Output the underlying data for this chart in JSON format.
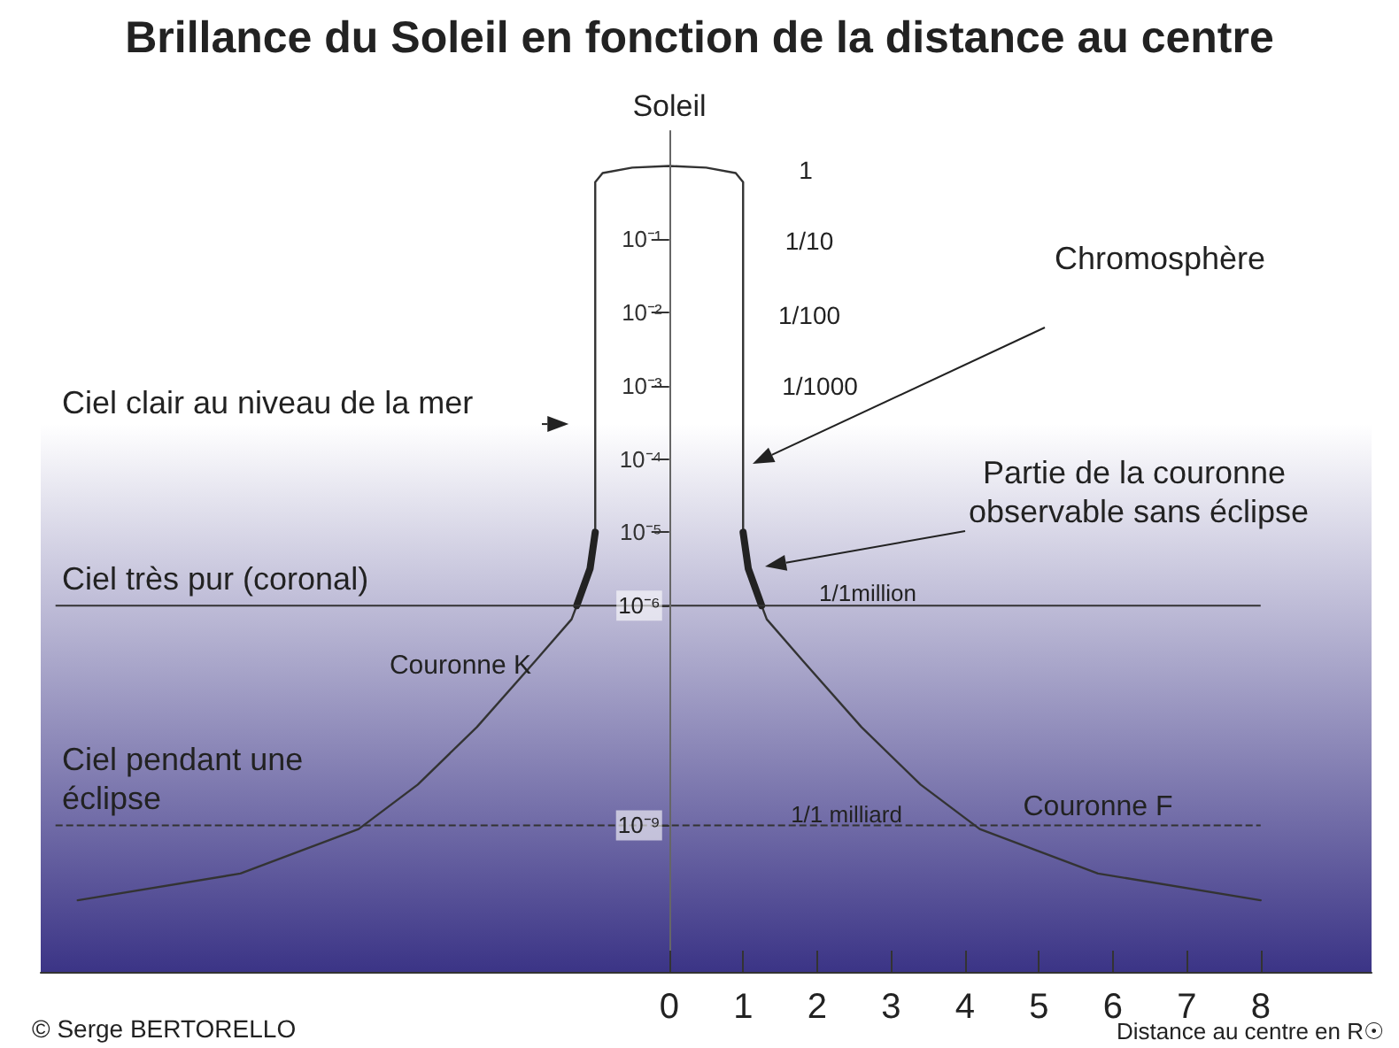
{
  "chart_data": {
    "type": "line",
    "title": "Brillance du Soleil en fonction de la distance au centre",
    "xlabel": "Distance au centre en R☉",
    "log": "y",
    "xlim": [
      -8.5,
      9.5
    ],
    "xticks": [
      0,
      1,
      2,
      3,
      4,
      5,
      6,
      7,
      8
    ],
    "ylim": [
      1e-11,
      3
    ],
    "yticks": [
      {
        "value": 0.1,
        "label": "10⁻¹"
      },
      {
        "value": 0.01,
        "label": "10⁻²"
      },
      {
        "value": 0.001,
        "label": "10⁻³"
      },
      {
        "value": 0.0001,
        "label": "10⁻⁴"
      },
      {
        "value": 1e-05,
        "label": "10⁻⁵"
      },
      {
        "value": 1e-06,
        "label": "10⁻⁶"
      },
      {
        "value": 1e-09,
        "label": "10⁻⁹"
      }
    ],
    "grid": false,
    "marker": "none",
    "line_style": "solid",
    "series": [
      {
        "color": "#333333",
        "x": [
          -8,
          -5.8,
          -4.2,
          -3.4,
          -2.6,
          -1.8,
          -1.32,
          -1.25,
          -1.07,
          -1,
          -1,
          -0.9,
          -0.5,
          0,
          0.5,
          0.9,
          1,
          1,
          1.07,
          1.25,
          1.32,
          1.8,
          2.6,
          3.4,
          4.2,
          5.8,
          8
        ],
        "values": [
          9.5e-11,
          2.2e-10,
          8.9e-10,
          3.6e-09,
          2.2e-08,
          1.8e-07,
          6.5e-07,
          1e-06,
          3.2e-06,
          1e-05,
          0.6,
          0.8,
          0.95,
          1,
          0.95,
          0.8,
          0.6,
          1e-05,
          3.2e-06,
          1e-06,
          6.5e-07,
          1.8e-07,
          2.2e-08,
          3.6e-09,
          8.9e-10,
          2.2e-10,
          9.5e-11
        ]
      },
      {
        "color": "#222222",
        "x": [
          1,
          1.07,
          1.25
        ],
        "values": [
          1e-05,
          3.2e-06,
          1e-06
        ]
      },
      {
        "color": "#222222",
        "x": [
          -1,
          -1.07,
          -1.25
        ],
        "values": [
          1e-05,
          3.2e-06,
          1e-06
        ]
      }
    ],
    "ref_lines": [
      {
        "axis": "y",
        "value": 1e-06,
        "label": "Ciel très pur (coronal)",
        "color": "#333333",
        "line_style": "solid"
      },
      {
        "axis": "y",
        "value": 1e-09,
        "label": "Ciel pendant une éclipse",
        "color": "#333333",
        "line_style": "dashed"
      }
    ],
    "bands": [
      {
        "axis": "y",
        "from": 1e-11,
        "to": 0.0003,
        "label": "Ciel clair au niveau de la mer",
        "color": "#3b3486"
      }
    ],
    "annotations": [
      "Soleil",
      "Chromosphère",
      "Partie de la couronne observable sans éclipse",
      "Couronne K",
      "Couronne F",
      "1",
      "1/10",
      "1/100",
      "1/1000",
      "1/1million",
      "1/1 milliard",
      "© Serge BERTORELLO"
    ]
  }
}
